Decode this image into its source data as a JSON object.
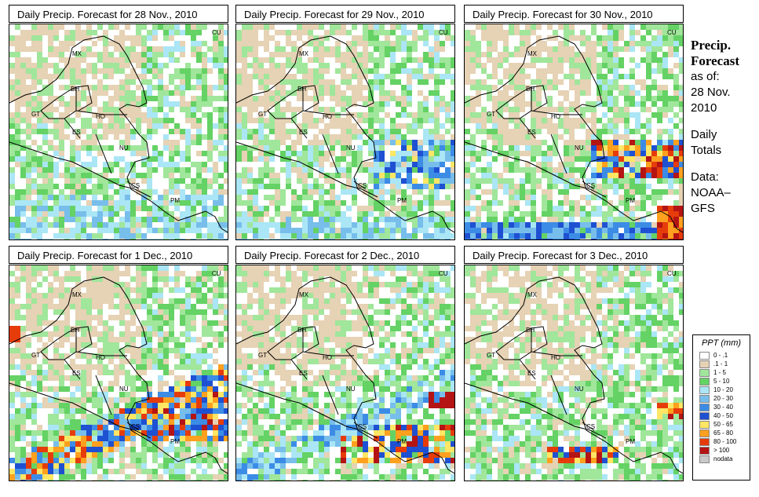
{
  "panels": [
    {
      "title": "Daily Precip. Forecast for  28 Nov., 2010",
      "pattern": "light"
    },
    {
      "title": "Daily Precip. Forecast for  29 Nov., 2010",
      "pattern": "mid"
    },
    {
      "title": "Daily Precip. Forecast for  30 Nov., 2010",
      "pattern": "heavy"
    },
    {
      "title": "Daily Precip. Forecast for  1 Dec., 2010",
      "pattern": "heavy2"
    },
    {
      "title": "Daily Precip. Forecast for  2 Dec., 2010",
      "pattern": "mid2"
    },
    {
      "title": "Daily Precip. Forecast for  3 Dec., 2010",
      "pattern": "mid3"
    }
  ],
  "country_labels": [
    "MX",
    "BH",
    "GT",
    "HO",
    "ES",
    "NU",
    "CS",
    "PM",
    "CU"
  ],
  "side_info": {
    "title_line1": "Precip.",
    "title_line2": "Forecast",
    "asof_line1": "as of:",
    "asof_line2": "28 Nov.",
    "asof_line3": "2010",
    "totals_line1": "Daily",
    "totals_line2": "Totals",
    "data_line1": "Data:",
    "data_line2": "NOAA–",
    "data_line3": "GFS"
  },
  "legend": {
    "title": "PPT (mm)",
    "items": [
      {
        "label": "0 - .1",
        "color": "#ffffff"
      },
      {
        "label": ".1 - 1",
        "color": "#e6d2b4"
      },
      {
        "label": "1 - 5",
        "color": "#a0e69b"
      },
      {
        "label": "5 - 10",
        "color": "#64d264"
      },
      {
        "label": "10 - 20",
        "color": "#aae6f5"
      },
      {
        "label": "20 - 30",
        "color": "#78beeb"
      },
      {
        "label": "30 - 40",
        "color": "#3c8ce6"
      },
      {
        "label": "40 - 50",
        "color": "#1e50d2"
      },
      {
        "label": "50 - 65",
        "color": "#ffe664"
      },
      {
        "label": "65 - 80",
        "color": "#ffa01e"
      },
      {
        "label": "80 - 100",
        "color": "#e63c0a"
      },
      {
        "label": "> 100",
        "color": "#b41414"
      },
      {
        "label": "nodata",
        "color": "#c8c8c8"
      }
    ]
  }
}
